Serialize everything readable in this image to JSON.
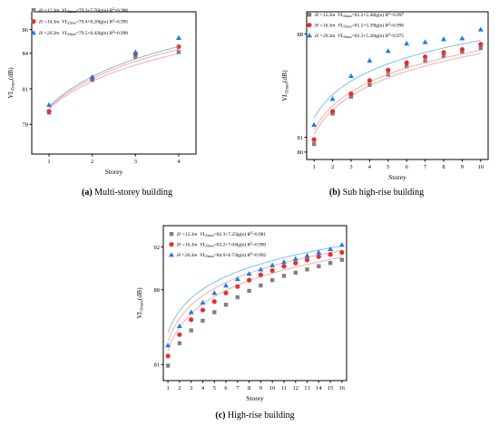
{
  "chart_data": [
    {
      "type": "scatter",
      "panel": "a",
      "caption_letter": "(a)",
      "caption_text": " Multi-storey building",
      "xlabel": "Storey",
      "ylabel_main": "VL",
      "ylabel_sub": "Zmax",
      "ylabel_unit": "(dB)",
      "xlim": [
        0.6,
        4.4
      ],
      "ylim": [
        75.5,
        87.5
      ],
      "xticks": [
        1,
        2,
        3,
        4
      ],
      "yticks": [
        78,
        81,
        84,
        86
      ],
      "ytick_labels": [
        "78",
        "81",
        "84",
        "86"
      ],
      "series": [
        {
          "legend": "H =12.3m  VL Zmax=79.3+7.76lg(n) R²=0.986",
          "legend_parts": {
            "h": "H =12.3m",
            "vl": "VL",
            "sub": "Zmax",
            "eq": "=79.3+7.76lg(n) ",
            "r": "R",
            "r2": "2",
            "val": "=0.986"
          },
          "marker": "square",
          "color": "#808080",
          "line_color": "#f4a3a3",
          "intercept": 79.3,
          "slope": 7.76,
          "x": [
            1,
            2,
            3,
            4
          ],
          "y": [
            79.0,
            81.75,
            83.7,
            84.1
          ]
        },
        {
          "legend": "H =16.3m  VL Zmax=79.4+8.20lg(n) R²=0.995",
          "legend_parts": {
            "h": "H =16.3m",
            "vl": "VL",
            "sub": "Zmax",
            "eq": "=79.4+8.20lg(n) ",
            "r": "R",
            "r2": "2",
            "val": "=0.995"
          },
          "marker": "circle",
          "color": "#e82e2e",
          "line_color": "#f4a3a3",
          "intercept": 79.4,
          "slope": 8.2,
          "x": [
            1,
            2,
            3,
            4
          ],
          "y": [
            79.1,
            81.9,
            83.95,
            84.55
          ]
        },
        {
          "legend": "H =20.3m  VL Zmax=79.5+8.42lg(n) R²=0.990",
          "legend_parts": {
            "h": "H =20.3m",
            "vl": "VL",
            "sub": "Zmax",
            "eq": "=79.5+8.42lg(n) ",
            "r": "R",
            "r2": "2",
            "val": "=0.990"
          },
          "marker": "triangle",
          "color": "#1f7ce6",
          "line_color": "#6fb7ee",
          "intercept": 79.5,
          "slope": 8.42,
          "x": [
            1,
            2,
            3,
            4
          ],
          "y": [
            79.65,
            82.0,
            84.1,
            85.3
          ]
        }
      ]
    },
    {
      "type": "scatter",
      "panel": "b",
      "caption_letter": "(b)",
      "caption_text": " Sub high-rise building",
      "xlabel": "Storey",
      "ylabel_main": "VL",
      "ylabel_sub": "Zmax",
      "ylabel_unit": "(dB)",
      "xlim": [
        0.6,
        10.4
      ],
      "ylim": [
        79.5,
        89.5
      ],
      "xticks": [
        1,
        2,
        3,
        4,
        5,
        6,
        7,
        8,
        9,
        10
      ],
      "yticks": [
        80,
        81,
        88
      ],
      "ytick_labels": [
        "80",
        "81",
        "88"
      ],
      "series": [
        {
          "legend": "H =12.3m  VL Zmax=81.2+5.48lg(n) R²=0.997",
          "legend_parts": {
            "h": "H =12.3m",
            "vl": "VL",
            "sub": "Zmax",
            "eq": "=81.2+5.48lg(n) ",
            "r": "R",
            "r2": "2",
            "val": "=0.997"
          },
          "marker": "square",
          "color": "#808080",
          "line_color": "#f4a3a3",
          "intercept": 81.2,
          "slope": 5.48,
          "x": [
            1,
            2,
            3,
            4,
            5,
            6,
            7,
            8,
            9,
            10
          ],
          "y": [
            80.55,
            82.6,
            83.75,
            84.55,
            85.25,
            85.8,
            86.15,
            86.5,
            86.75,
            87.05
          ]
        },
        {
          "legend": "H =16.3m  VL Zmax=81.5+5.39lg(n) R²=0.996",
          "legend_parts": {
            "h": "H =16.3m",
            "vl": "VL",
            "sub": "Zmax",
            "eq": "=81.5+5.39lg(n) ",
            "r": "R",
            "r2": "2",
            "val": "=0.996"
          },
          "marker": "circle",
          "color": "#e82e2e",
          "line_color": "#f4a3a3",
          "intercept": 81.5,
          "slope": 5.39,
          "x": [
            1,
            2,
            3,
            4,
            5,
            6,
            7,
            8,
            9,
            10
          ],
          "y": [
            80.85,
            82.75,
            83.95,
            84.85,
            85.55,
            86.05,
            86.45,
            86.75,
            86.95,
            87.3
          ]
        },
        {
          "legend": "H =20.3m  VL Zmax=82.3+5.26lg(n) R²=0.975",
          "legend_parts": {
            "h": "H =20.3m",
            "vl": "VL",
            "sub": "Zmax",
            "eq": "=82.3+5.26lg(n) ",
            "r": "R",
            "r2": "2",
            "val": "=0.975"
          },
          "marker": "triangle",
          "color": "#1f7ce6",
          "line_color": "#6fb7ee",
          "intercept": 82.3,
          "slope": 5.26,
          "x": [
            1,
            2,
            3,
            4,
            5,
            6,
            7,
            8,
            9,
            10
          ],
          "y": [
            81.85,
            83.6,
            85.15,
            86.2,
            86.85,
            87.35,
            87.45,
            87.65,
            87.7,
            88.3
          ]
        }
      ]
    },
    {
      "type": "scatter",
      "panel": "c",
      "caption_letter": "(c)",
      "caption_text": " High-rise building",
      "xlabel": "Storey",
      "ylabel_main": "VL",
      "ylabel_sub": "Zmax",
      "ylabel_unit": "(dB)",
      "xlim": [
        0.6,
        16.4
      ],
      "ylim": [
        79.5,
        94.0
      ],
      "xticks": [
        1,
        2,
        3,
        4,
        5,
        6,
        7,
        8,
        9,
        10,
        11,
        12,
        13,
        14,
        15,
        16
      ],
      "yticks": [
        81,
        88,
        92
      ],
      "ytick_labels": [
        "81",
        "88",
        "92"
      ],
      "series": [
        {
          "legend": "H =12.3m  VL Zmax=82.3+7.25lg(n) R²=0.981",
          "legend_parts": {
            "h": "H =12.3m",
            "vl": "VL",
            "sub": "Zmax",
            "eq": "=82.3+7.25lg(n) ",
            "r": "R",
            "r2": "2",
            "val": "=0.981"
          },
          "marker": "square",
          "color": "#808080",
          "line_color": "#f4a3a3",
          "intercept": 82.3,
          "slope": 7.25,
          "x": [
            1,
            2,
            3,
            4,
            5,
            6,
            7,
            8,
            9,
            10,
            11,
            12,
            13,
            14,
            15,
            16
          ],
          "y": [
            80.9,
            83.0,
            84.2,
            85.1,
            85.9,
            86.6,
            87.3,
            87.9,
            88.4,
            88.9,
            89.3,
            89.6,
            89.9,
            90.2,
            90.5,
            90.8
          ]
        },
        {
          "legend": "H =16.3m  VL Zmax=83.2+7.04lg(n) R²=0.990",
          "legend_parts": {
            "h": "H =16.3m",
            "vl": "VL",
            "sub": "Zmax",
            "eq": "=83.2+7.04lg(n) ",
            "r": "R",
            "r2": "2",
            "val": "=0.990"
          },
          "marker": "circle",
          "color": "#e82e2e",
          "line_color": "#f4a3a3",
          "intercept": 83.2,
          "slope": 7.04,
          "x": [
            1,
            2,
            3,
            4,
            5,
            6,
            7,
            8,
            9,
            10,
            11,
            12,
            13,
            14,
            15,
            16
          ],
          "y": [
            81.8,
            83.8,
            85.2,
            86.1,
            86.9,
            87.7,
            88.3,
            88.9,
            89.4,
            89.8,
            90.2,
            90.5,
            90.8,
            91.1,
            91.3,
            91.5
          ]
        },
        {
          "legend": "H =20.3m  VL Zmax=84.0+6.73lg(n) R²=0.992",
          "legend_parts": {
            "h": "H =20.3m",
            "vl": "VL",
            "sub": "Zmax",
            "eq": "=84.0+6.73lg(n) ",
            "r": "R",
            "r2": "2",
            "val": "=0.992"
          },
          "marker": "triangle",
          "color": "#1f7ce6",
          "line_color": "#6fb7ee",
          "intercept": 84.0,
          "slope": 6.73,
          "x": [
            1,
            2,
            3,
            4,
            5,
            6,
            7,
            8,
            9,
            10,
            11,
            12,
            13,
            14,
            15,
            16
          ],
          "y": [
            82.8,
            84.6,
            85.9,
            86.8,
            87.7,
            88.4,
            89.0,
            89.5,
            89.9,
            90.3,
            90.6,
            90.9,
            91.2,
            91.5,
            91.8,
            92.2
          ]
        }
      ]
    }
  ]
}
